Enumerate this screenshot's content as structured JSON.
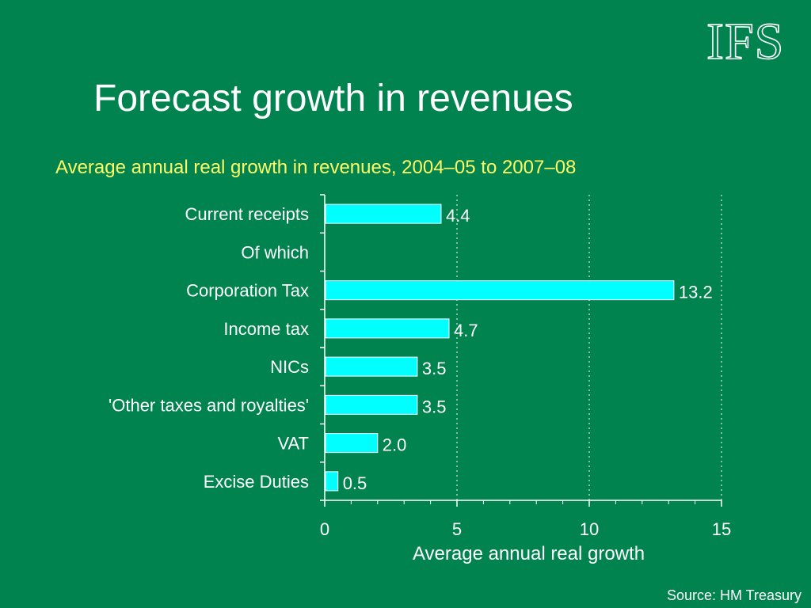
{
  "slide": {
    "title": "Forecast growth in revenues",
    "logo_text": "IFS",
    "source": "Source: HM Treasury"
  },
  "colors": {
    "background": "#00834e",
    "bar": "#00ffff",
    "subtitle": "#ffff66",
    "text": "#ffffff"
  },
  "chart_data": {
    "type": "bar",
    "orientation": "horizontal",
    "title": "Average annual real growth in revenues, 2004–05 to 2007–08",
    "xlabel": "Average annual real growth",
    "ylabel": "",
    "categories": [
      "Current receipts",
      "Of which",
      "Corporation Tax",
      "Income tax",
      "NICs",
      "'Other taxes and royalties'",
      "VAT",
      "Excise Duties"
    ],
    "values": [
      4.4,
      null,
      13.2,
      4.7,
      3.5,
      3.5,
      2.0,
      0.5
    ],
    "value_labels": [
      "4.4",
      "",
      "13.2",
      "4.7",
      "3.5",
      "3.5",
      "2.0",
      "0.5"
    ],
    "xlim": [
      0,
      15
    ],
    "xticks": [
      0,
      5,
      10,
      15
    ],
    "xtick_labels": [
      "0",
      "5",
      "10",
      "15"
    ],
    "grid": "vertical dotted at major ticks",
    "legend": "none"
  }
}
